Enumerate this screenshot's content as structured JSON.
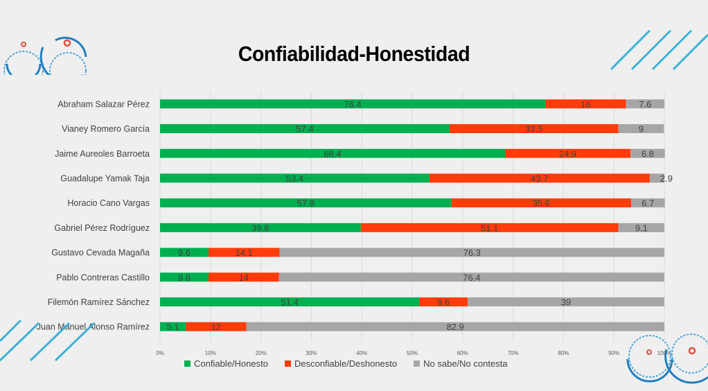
{
  "chart_data": {
    "type": "bar",
    "orientation": "horizontal",
    "stacked": true,
    "title": "Confiabilidad-Honestidad",
    "categories": [
      "Abraham Salazar Pérez",
      "Vianey Romero García",
      "Jaime Aureoles Barroeta",
      "Guadalupe Yamak Taja",
      "Horacio Cano Vargas",
      "Gabriel Pérez Rodríguez",
      "Gustavo Cevada Magaña",
      "Pablo Contreras Castillo",
      "Filemón Ramírez Sánchez",
      "Juan Manuel Alonso Ramírez"
    ],
    "series": [
      {
        "name": "Confiable/Honesto",
        "color": "#00b050",
        "values": [
          76.4,
          57.4,
          68.4,
          53.4,
          57.8,
          39.8,
          9.6,
          9.6,
          51.4,
          5.1
        ]
      },
      {
        "name": "Desconfiable/Deshonesto",
        "color": "#ff3c0a",
        "values": [
          16,
          33.5,
          24.9,
          43.7,
          35.6,
          51.1,
          14.1,
          14,
          9.6,
          12
        ]
      },
      {
        "name": "No sabe/No contesta",
        "color": "#a6a6a6",
        "values": [
          7.6,
          9,
          6.8,
          2.9,
          6.7,
          9.1,
          76.3,
          76.4,
          39,
          82.9
        ]
      }
    ],
    "xticks": [
      "0%",
      "10%",
      "20%",
      "30%",
      "40%",
      "50%",
      "60%",
      "70%",
      "80%",
      "90%",
      "100%"
    ],
    "xlim": [
      0,
      100
    ],
    "legend": "bottom",
    "grid": "vertical"
  }
}
